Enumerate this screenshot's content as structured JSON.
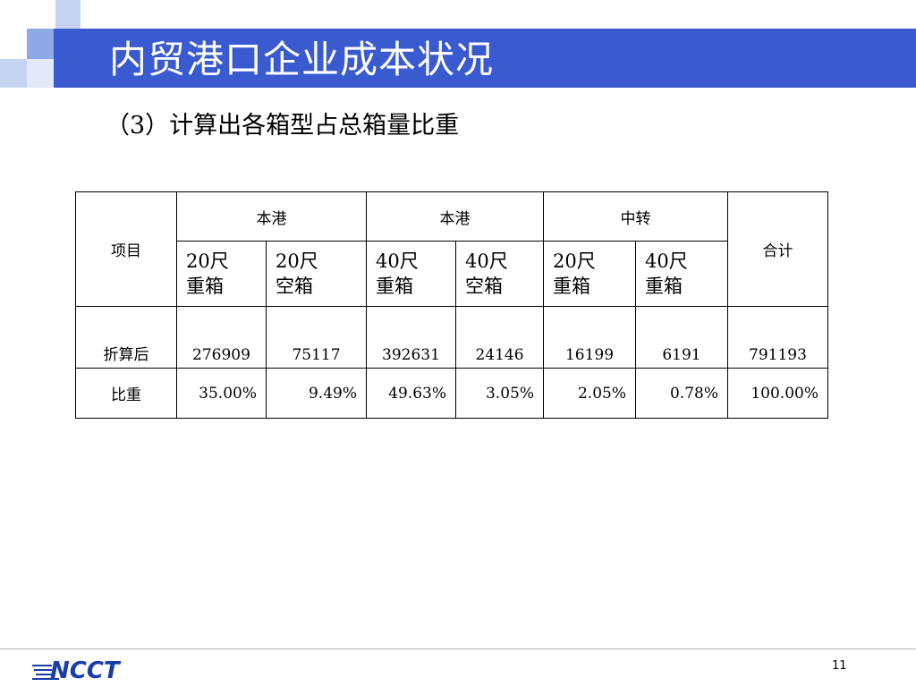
{
  "slide": {
    "title": "内贸港口企业成本状况",
    "subtitle": "（3）计算出各箱型占总箱量比重",
    "page_number": "11",
    "logo_text": "NCCT",
    "colors": {
      "title_bar": "#3a5bd0",
      "accent_light": "#c6d3f2",
      "accent_mid": "#8fa8e6",
      "logo": "#1a3da8"
    }
  },
  "table": {
    "item_header": "项目",
    "total_header": "合计",
    "groups": [
      "本港",
      "本港",
      "中转"
    ],
    "subheaders": [
      [
        "20尺",
        "重箱"
      ],
      [
        "20尺",
        "空箱"
      ],
      [
        "40尺",
        "重箱"
      ],
      [
        "40尺",
        "空箱"
      ],
      [
        "20尺",
        "重箱"
      ],
      [
        "40尺",
        "重箱"
      ]
    ],
    "rows": [
      {
        "label": "折算后",
        "values": [
          "276909",
          "75117",
          "392631",
          "24146",
          "16199",
          "6191",
          "791193"
        ]
      },
      {
        "label": "比重",
        "values": [
          "35.00%",
          "9.49%",
          "49.63%",
          "3.05%",
          "2.05%",
          "0.78%",
          "100.00%"
        ]
      }
    ]
  }
}
